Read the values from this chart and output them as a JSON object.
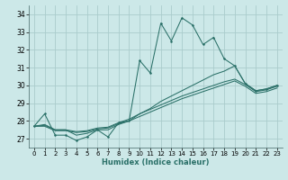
{
  "title": "",
  "xlabel": "Humidex (Indice chaleur)",
  "background_color": "#cce8e8",
  "grid_color": "#aacccc",
  "line_color": "#2a7068",
  "xlim": [
    -0.5,
    23.5
  ],
  "ylim": [
    26.5,
    34.5
  ],
  "yticks": [
    27,
    28,
    29,
    30,
    31,
    32,
    33,
    34
  ],
  "xticks": [
    0,
    1,
    2,
    3,
    4,
    5,
    6,
    7,
    8,
    9,
    10,
    11,
    12,
    13,
    14,
    15,
    16,
    17,
    18,
    19,
    20,
    21,
    22,
    23
  ],
  "series_main": [
    27.7,
    28.4,
    27.2,
    27.2,
    26.9,
    27.1,
    27.5,
    27.1,
    27.9,
    28.0,
    31.4,
    30.7,
    33.5,
    32.5,
    33.8,
    33.4,
    32.3,
    32.7,
    31.5,
    31.1,
    30.1,
    29.7,
    29.8,
    30.0
  ],
  "series_smooth": [
    [
      27.7,
      27.8,
      27.5,
      27.5,
      27.2,
      27.3,
      27.5,
      27.5,
      27.8,
      28.0,
      28.4,
      28.7,
      29.1,
      29.4,
      29.7,
      30.0,
      30.3,
      30.6,
      30.8,
      31.1,
      30.1,
      29.7,
      29.8,
      30.0
    ],
    [
      27.7,
      27.75,
      27.5,
      27.5,
      27.4,
      27.45,
      27.6,
      27.65,
      27.9,
      28.1,
      28.4,
      28.65,
      28.9,
      29.15,
      29.4,
      29.6,
      29.8,
      30.0,
      30.2,
      30.35,
      30.05,
      29.65,
      29.75,
      29.95
    ],
    [
      27.7,
      27.7,
      27.45,
      27.45,
      27.35,
      27.4,
      27.55,
      27.6,
      27.85,
      28.0,
      28.25,
      28.5,
      28.75,
      29.0,
      29.25,
      29.45,
      29.65,
      29.85,
      30.05,
      30.25,
      29.95,
      29.55,
      29.65,
      29.85
    ]
  ]
}
